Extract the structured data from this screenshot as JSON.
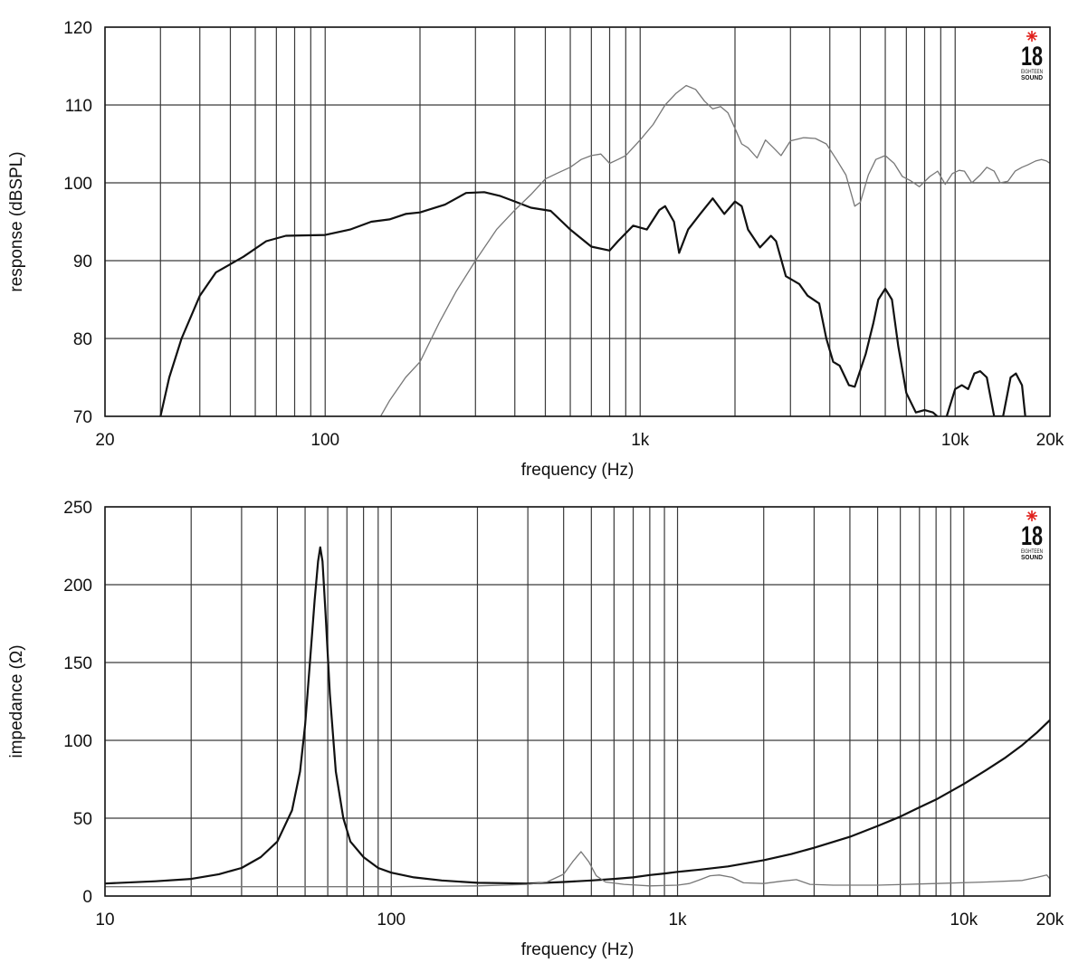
{
  "colors": {
    "main_curve": "#111111",
    "secondary_curve": "#777777",
    "grid": "#3a3a3a",
    "logo_star": "#e0201b"
  },
  "logo": {
    "number": "18",
    "text_line1": "EIGHTEEN",
    "text_line2": "SOUND"
  },
  "chart_data": [
    {
      "type": "line",
      "title": "",
      "xlabel": "frequency (Hz)",
      "ylabel": "response (dBSPL)",
      "x_scale": "log",
      "xlim": [
        20,
        20000
      ],
      "ylim": [
        70,
        120
      ],
      "grid": true,
      "x_ticks": [
        {
          "value": 20,
          "label": "20"
        },
        {
          "value": 100,
          "label": "100"
        },
        {
          "value": 1000,
          "label": "1k"
        },
        {
          "value": 10000,
          "label": "10k"
        },
        {
          "value": 20000,
          "label": "20k"
        }
      ],
      "y_ticks": [
        {
          "value": 70,
          "label": "70"
        },
        {
          "value": 80,
          "label": "80"
        },
        {
          "value": 90,
          "label": "90"
        },
        {
          "value": 100,
          "label": "100"
        },
        {
          "value": 110,
          "label": "110"
        },
        {
          "value": 120,
          "label": "120"
        }
      ],
      "series": [
        {
          "style": "main",
          "points": [
            [
              30,
              70
            ],
            [
              32,
              75
            ],
            [
              35,
              80
            ],
            [
              40,
              85.5
            ],
            [
              45,
              88.5
            ],
            [
              55,
              90.5
            ],
            [
              65,
              92.5
            ],
            [
              75,
              93.2
            ],
            [
              100,
              93.3
            ],
            [
              120,
              94
            ],
            [
              140,
              95
            ],
            [
              160,
              95.3
            ],
            [
              180,
              96
            ],
            [
              200,
              96.2
            ],
            [
              240,
              97.2
            ],
            [
              280,
              98.7
            ],
            [
              320,
              98.8
            ],
            [
              360,
              98.3
            ],
            [
              400,
              97.6
            ],
            [
              450,
              96.8
            ],
            [
              520,
              96.4
            ],
            [
              600,
              94
            ],
            [
              700,
              91.8
            ],
            [
              800,
              91.3
            ],
            [
              850,
              92.5
            ],
            [
              950,
              94.5
            ],
            [
              1050,
              94
            ],
            [
              1150,
              96.5
            ],
            [
              1200,
              97
            ],
            [
              1280,
              95
            ],
            [
              1330,
              91
            ],
            [
              1420,
              94
            ],
            [
              1550,
              96
            ],
            [
              1700,
              98
            ],
            [
              1850,
              96
            ],
            [
              2000,
              97.6
            ],
            [
              2100,
              97
            ],
            [
              2200,
              94
            ],
            [
              2400,
              91.7
            ],
            [
              2600,
              93.2
            ],
            [
              2700,
              92.5
            ],
            [
              2900,
              88
            ],
            [
              3200,
              87
            ],
            [
              3400,
              85.5
            ],
            [
              3700,
              84.5
            ],
            [
              3900,
              80
            ],
            [
              4100,
              77
            ],
            [
              4300,
              76.5
            ],
            [
              4600,
              74
            ],
            [
              4800,
              73.8
            ],
            [
              5200,
              78
            ],
            [
              5500,
              82
            ],
            [
              5700,
              85
            ],
            [
              6000,
              86.4
            ],
            [
              6300,
              85
            ],
            [
              6600,
              79
            ],
            [
              7000,
              73
            ],
            [
              7500,
              70.5
            ],
            [
              8000,
              70.8
            ],
            [
              8500,
              70.5
            ],
            [
              9000,
              69.6
            ],
            [
              9400,
              70
            ],
            [
              10000,
              73.5
            ],
            [
              10500,
              74
            ],
            [
              11000,
              73.5
            ],
            [
              11500,
              75.5
            ],
            [
              12000,
              75.8
            ],
            [
              12600,
              75
            ],
            [
              13300,
              70
            ],
            [
              14200,
              70
            ],
            [
              15000,
              75
            ],
            [
              15600,
              75.5
            ],
            [
              16300,
              74
            ],
            [
              16700,
              70
            ]
          ]
        },
        {
          "style": "secondary",
          "points": [
            [
              150,
              70
            ],
            [
              160,
              72
            ],
            [
              180,
              75
            ],
            [
              200,
              77
            ],
            [
              230,
              82
            ],
            [
              260,
              86
            ],
            [
              300,
              90
            ],
            [
              350,
              94
            ],
            [
              400,
              96.5
            ],
            [
              450,
              98.5
            ],
            [
              500,
              100.5
            ],
            [
              550,
              101.3
            ],
            [
              600,
              102
            ],
            [
              650,
              103
            ],
            [
              700,
              103.5
            ],
            [
              750,
              103.7
            ],
            [
              800,
              102.5
            ],
            [
              850,
              103
            ],
            [
              900,
              103.5
            ],
            [
              1000,
              105.5
            ],
            [
              1100,
              107.5
            ],
            [
              1200,
              110
            ],
            [
              1300,
              111.5
            ],
            [
              1400,
              112.5
            ],
            [
              1500,
              112
            ],
            [
              1600,
              110.5
            ],
            [
              1700,
              109.5
            ],
            [
              1800,
              109.8
            ],
            [
              1900,
              109
            ],
            [
              2000,
              107
            ],
            [
              2100,
              105
            ],
            [
              2200,
              104.5
            ],
            [
              2350,
              103.2
            ],
            [
              2500,
              105.5
            ],
            [
              2650,
              104.5
            ],
            [
              2800,
              103.5
            ],
            [
              3000,
              105.4
            ],
            [
              3300,
              105.8
            ],
            [
              3600,
              105.7
            ],
            [
              3900,
              105
            ],
            [
              4200,
              103
            ],
            [
              4500,
              101
            ],
            [
              4800,
              97
            ],
            [
              5000,
              97.5
            ],
            [
              5300,
              101
            ],
            [
              5600,
              103
            ],
            [
              6000,
              103.5
            ],
            [
              6400,
              102.5
            ],
            [
              6800,
              100.8
            ],
            [
              7200,
              100.3
            ],
            [
              7700,
              99.5
            ],
            [
              8300,
              100.8
            ],
            [
              8800,
              101.5
            ],
            [
              9300,
              99.8
            ],
            [
              9800,
              101.2
            ],
            [
              10300,
              101.6
            ],
            [
              10700,
              101.5
            ],
            [
              11300,
              100
            ],
            [
              12000,
              101
            ],
            [
              12600,
              102
            ],
            [
              13300,
              101.5
            ],
            [
              13900,
              100
            ],
            [
              14700,
              100.2
            ],
            [
              15500,
              101.5
            ],
            [
              16300,
              102
            ],
            [
              17000,
              102.3
            ],
            [
              18000,
              102.8
            ],
            [
              18800,
              103
            ],
            [
              19500,
              102.8
            ],
            [
              20000,
              102.5
            ]
          ]
        }
      ]
    },
    {
      "type": "line",
      "title": "",
      "xlabel": "frequency (Hz)",
      "ylabel": "impedance (Ω)",
      "x_scale": "log",
      "xlim": [
        10,
        20000
      ],
      "ylim": [
        0,
        250
      ],
      "grid": true,
      "x_ticks": [
        {
          "value": 10,
          "label": "10"
        },
        {
          "value": 100,
          "label": "100"
        },
        {
          "value": 1000,
          "label": "1k"
        },
        {
          "value": 10000,
          "label": "10k"
        },
        {
          "value": 20000,
          "label": "20k"
        }
      ],
      "y_ticks": [
        {
          "value": 0,
          "label": "0"
        },
        {
          "value": 50,
          "label": "50"
        },
        {
          "value": 100,
          "label": "100"
        },
        {
          "value": 150,
          "label": "150"
        },
        {
          "value": 200,
          "label": "200"
        },
        {
          "value": 250,
          "label": "250"
        }
      ],
      "series": [
        {
          "style": "main",
          "points": [
            [
              10,
              8
            ],
            [
              15,
              9.5
            ],
            [
              20,
              11
            ],
            [
              25,
              14
            ],
            [
              30,
              18
            ],
            [
              35,
              25
            ],
            [
              40,
              35
            ],
            [
              45,
              55
            ],
            [
              48,
              80
            ],
            [
              50,
              110
            ],
            [
              52,
              150
            ],
            [
              54,
              190
            ],
            [
              55.5,
              215
            ],
            [
              56.5,
              224
            ],
            [
              57.5,
              215
            ],
            [
              59,
              180
            ],
            [
              61,
              130
            ],
            [
              64,
              80
            ],
            [
              68,
              50
            ],
            [
              72,
              35
            ],
            [
              80,
              25
            ],
            [
              90,
              18
            ],
            [
              100,
              15
            ],
            [
              120,
              12
            ],
            [
              150,
              10
            ],
            [
              200,
              8.5
            ],
            [
              300,
              8
            ],
            [
              400,
              9
            ],
            [
              500,
              10
            ],
            [
              600,
              11
            ],
            [
              700,
              12
            ],
            [
              800,
              13.5
            ],
            [
              900,
              14.5
            ],
            [
              1000,
              15.5
            ],
            [
              1200,
              17
            ],
            [
              1500,
              19
            ],
            [
              2000,
              23
            ],
            [
              2500,
              27
            ],
            [
              3000,
              31
            ],
            [
              4000,
              38
            ],
            [
              5000,
              45
            ],
            [
              6000,
              51
            ],
            [
              7000,
              57
            ],
            [
              8000,
              62
            ],
            [
              10000,
              72
            ],
            [
              12000,
              81
            ],
            [
              14000,
              89
            ],
            [
              16000,
              97
            ],
            [
              18000,
              105
            ],
            [
              20000,
              113
            ]
          ]
        },
        {
          "style": "secondary",
          "points": [
            [
              10,
              6
            ],
            [
              100,
              6
            ],
            [
              200,
              6.5
            ],
            [
              300,
              7.5
            ],
            [
              350,
              9
            ],
            [
              400,
              14
            ],
            [
              430,
              22
            ],
            [
              460,
              28.5
            ],
            [
              490,
              22
            ],
            [
              520,
              13
            ],
            [
              560,
              9
            ],
            [
              650,
              7.5
            ],
            [
              800,
              6.5
            ],
            [
              1000,
              7
            ],
            [
              1100,
              8
            ],
            [
              1200,
              10.5
            ],
            [
              1300,
              13
            ],
            [
              1400,
              13.5
            ],
            [
              1550,
              12
            ],
            [
              1700,
              8.5
            ],
            [
              2000,
              8
            ],
            [
              2300,
              9.5
            ],
            [
              2600,
              10.5
            ],
            [
              2900,
              7.5
            ],
            [
              3500,
              7
            ],
            [
              5000,
              7
            ],
            [
              8000,
              8
            ],
            [
              12000,
              9
            ],
            [
              16000,
              10
            ],
            [
              18000,
              12
            ],
            [
              19500,
              13.5
            ],
            [
              20000,
              11
            ]
          ]
        }
      ]
    }
  ]
}
